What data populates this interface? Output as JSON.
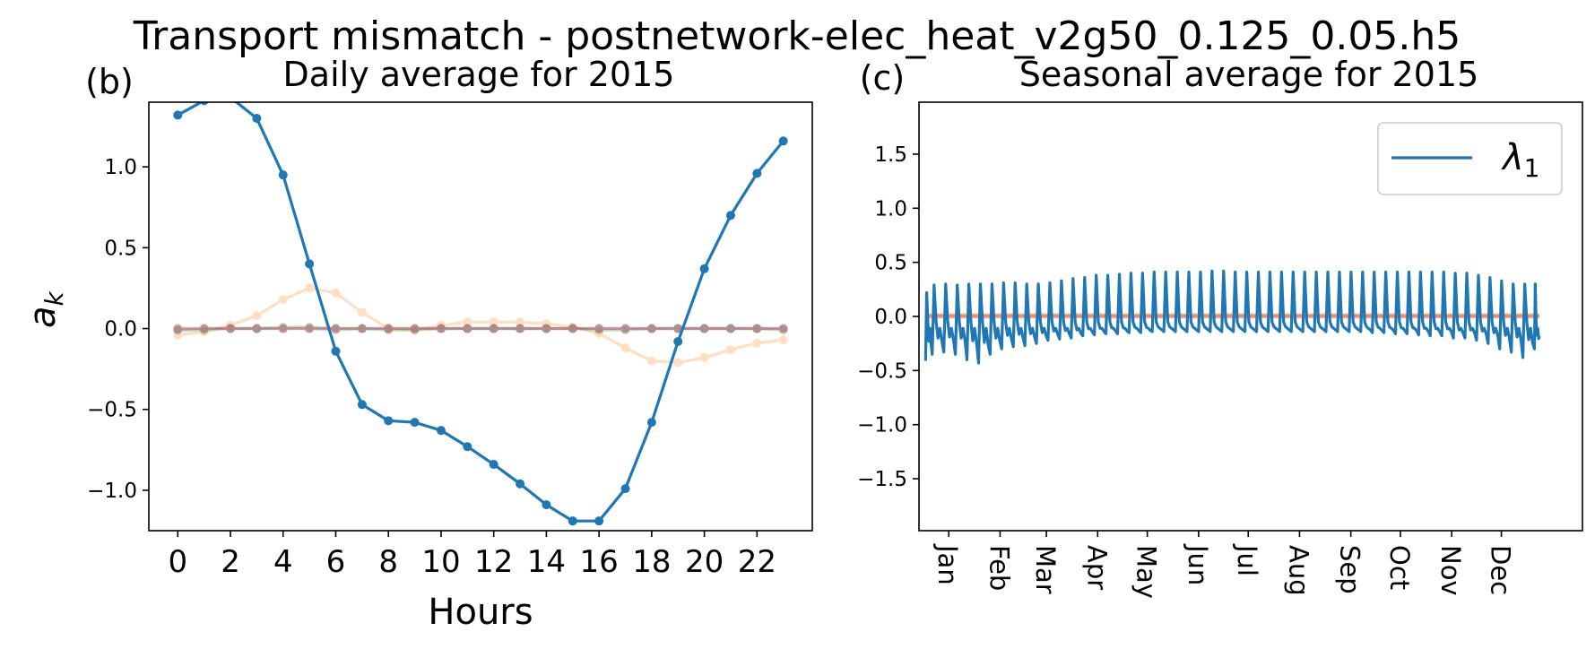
{
  "suptitle": "Transport mismatch - postnetwork-elec_heat_v2g50_0.125_0.05.h5",
  "chart_data": [
    {
      "panel_label": "(b)",
      "type": "line",
      "title": "Daily average for 2015",
      "xlabel": "Hours",
      "ylabel": "a",
      "ylabel_subscript": "k",
      "xlim": [
        -1.1,
        24.1
      ],
      "ylim": [
        -1.25,
        1.4
      ],
      "x_ticks": [
        0,
        2,
        4,
        6,
        8,
        10,
        12,
        14,
        16,
        18,
        20,
        22
      ],
      "y_ticks": [
        1.0,
        0.5,
        0.0,
        -0.5,
        -1.0
      ],
      "y_tick_labels": [
        "1.0",
        "0.5",
        "0.0",
        "−0.5",
        "−1.0"
      ],
      "x": [
        0,
        1,
        2,
        3,
        4,
        5,
        6,
        7,
        8,
        9,
        10,
        11,
        12,
        13,
        14,
        15,
        16,
        17,
        18,
        19,
        20,
        21,
        22,
        23
      ],
      "series": [
        {
          "color": "#1f77b4",
          "opacity": 1.0,
          "values": [
            1.32,
            1.41,
            1.43,
            1.3,
            0.95,
            0.4,
            -0.14,
            -0.47,
            -0.57,
            -0.58,
            -0.63,
            -0.73,
            -0.84,
            -0.96,
            -1.09,
            -1.19,
            -1.19,
            -0.99,
            -0.58,
            -0.08,
            0.37,
            0.7,
            0.96,
            1.16
          ]
        },
        {
          "color": "#ff7f0e",
          "opacity": 0.25,
          "values": [
            -0.04,
            -0.02,
            0.02,
            0.08,
            0.18,
            0.25,
            0.22,
            0.1,
            0.0,
            -0.01,
            0.02,
            0.04,
            0.04,
            0.04,
            0.03,
            0.01,
            -0.03,
            -0.12,
            -0.2,
            -0.21,
            -0.18,
            -0.13,
            -0.09,
            -0.07
          ]
        },
        {
          "color": "#2ca02c",
          "opacity": 0.25,
          "values": [
            -0.01,
            -0.01,
            0.0,
            0.0,
            0.01,
            0.01,
            0.0,
            0.0,
            -0.01,
            -0.01,
            0.0,
            0.0,
            0.0,
            0.0,
            0.0,
            0.0,
            -0.01,
            -0.01,
            0.0,
            0.0,
            0.0,
            0.0,
            0.0,
            -0.01
          ]
        },
        {
          "color": "#d62728",
          "opacity": 0.25,
          "values": [
            0.0,
            0.0,
            0.0,
            0.0,
            0.0,
            0.0,
            0.0,
            0.0,
            0.0,
            0.0,
            0.0,
            0.0,
            0.0,
            0.0,
            0.0,
            0.0,
            0.0,
            0.0,
            0.0,
            0.0,
            0.0,
            0.0,
            0.0,
            0.0
          ]
        },
        {
          "color": "#9467bd",
          "opacity": 0.25,
          "values": [
            -0.01,
            0.0,
            0.0,
            0.0,
            0.0,
            0.0,
            -0.01,
            0.0,
            0.0,
            0.0,
            0.0,
            0.0,
            0.0,
            0.0,
            0.0,
            0.0,
            0.0,
            0.0,
            0.0,
            0.0,
            0.0,
            0.0,
            0.0,
            0.0
          ]
        },
        {
          "color": "#8c564b",
          "opacity": 0.25,
          "values": [
            0.0,
            0.0,
            0.0,
            0.0,
            0.0,
            0.0,
            0.0,
            0.0,
            0.0,
            0.0,
            0.0,
            0.0,
            0.0,
            0.0,
            0.0,
            0.0,
            0.0,
            0.0,
            0.0,
            0.0,
            0.0,
            0.0,
            0.0,
            0.0
          ]
        }
      ]
    },
    {
      "panel_label": "(c)",
      "type": "line",
      "title": "Seasonal average for 2015",
      "xlabel": "",
      "ylabel": "",
      "xlim": [
        -18,
        383
      ],
      "ylim": [
        -1.98,
        1.98
      ],
      "y_ticks": [
        1.5,
        1.0,
        0.5,
        0.0,
        -0.5,
        -1.0,
        -1.5
      ],
      "y_tick_labels": [
        "1.5",
        "1.0",
        "0.5",
        "0.0",
        "−0.5",
        "−1.0",
        "−1.5"
      ],
      "x_ticks": [
        0,
        31,
        59,
        90,
        120,
        151,
        181,
        212,
        243,
        273,
        304,
        334
      ],
      "x_tick_labels": [
        "Jan",
        "Feb",
        "Mar",
        "Apr",
        "May",
        "Jun",
        "Jul",
        "Aug",
        "Sep",
        "Oct",
        "Nov",
        "Dec"
      ],
      "legend": {
        "position": "top-right",
        "label": "λ",
        "label_subscript": "1"
      },
      "grid": false,
      "weekly_series": {
        "color": "#1f77b4",
        "start_day": -14,
        "end_day": 357,
        "week_starts": [
          -14,
          -10,
          -3,
          4,
          11,
          18,
          25,
          32,
          39,
          46,
          53,
          60,
          67,
          74,
          81,
          88,
          95,
          102,
          109,
          116,
          123,
          130,
          137,
          144,
          151,
          158,
          165,
          172,
          179,
          186,
          193,
          200,
          207,
          214,
          221,
          228,
          235,
          242,
          249,
          256,
          263,
          270,
          277,
          284,
          291,
          298,
          305,
          312,
          319,
          326,
          333,
          340,
          347,
          354
        ],
        "week_peaks": [
          0.22,
          0.29,
          0.3,
          0.29,
          0.3,
          0.3,
          0.3,
          0.31,
          0.31,
          0.3,
          0.3,
          0.31,
          0.33,
          0.35,
          0.36,
          0.38,
          0.38,
          0.39,
          0.4,
          0.4,
          0.41,
          0.41,
          0.41,
          0.41,
          0.41,
          0.42,
          0.42,
          0.41,
          0.41,
          0.41,
          0.41,
          0.41,
          0.41,
          0.41,
          0.41,
          0.41,
          0.41,
          0.41,
          0.41,
          0.41,
          0.41,
          0.41,
          0.41,
          0.41,
          0.41,
          0.41,
          0.4,
          0.4,
          0.38,
          0.36,
          0.33,
          0.3,
          0.3,
          0.3
        ],
        "week_troughs": [
          -0.41,
          -0.35,
          -0.33,
          -0.35,
          -0.4,
          -0.43,
          -0.35,
          -0.3,
          -0.28,
          -0.27,
          -0.25,
          -0.22,
          -0.21,
          -0.2,
          -0.18,
          -0.17,
          -0.16,
          -0.16,
          -0.15,
          -0.15,
          -0.14,
          -0.14,
          -0.14,
          -0.14,
          -0.14,
          -0.14,
          -0.14,
          -0.14,
          -0.14,
          -0.14,
          -0.14,
          -0.14,
          -0.14,
          -0.14,
          -0.14,
          -0.14,
          -0.14,
          -0.14,
          -0.14,
          -0.15,
          -0.15,
          -0.16,
          -0.16,
          -0.17,
          -0.18,
          -0.18,
          -0.2,
          -0.2,
          -0.22,
          -0.25,
          -0.3,
          -0.33,
          -0.38,
          -0.3
        ],
        "weekday_mid": -0.05,
        "end_value": -0.18
      },
      "flat_series": [
        {
          "color": "#ff7f0e",
          "opacity": 0.45,
          "value": 0.01
        },
        {
          "color": "#d62728",
          "opacity": 0.35,
          "value": 0.0
        }
      ]
    }
  ]
}
